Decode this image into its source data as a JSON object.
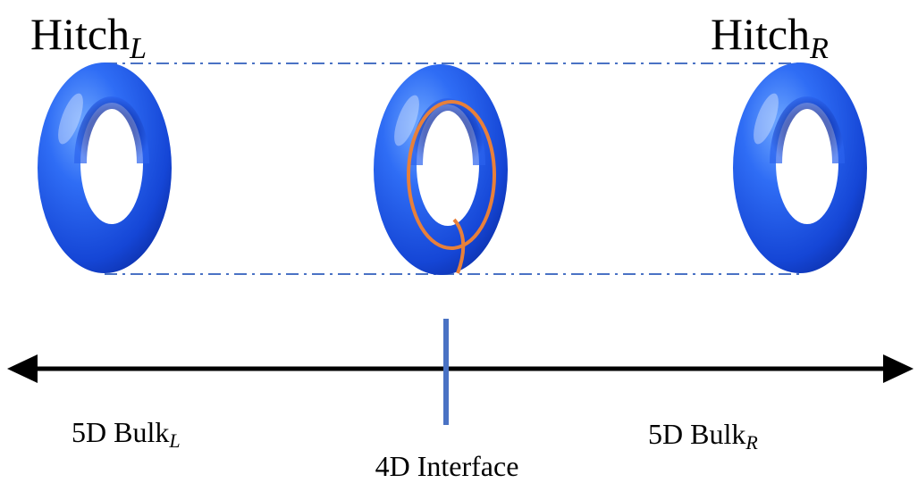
{
  "labels": {
    "hitch_left": {
      "text": "Hitch",
      "sub": "L"
    },
    "hitch_right": {
      "text": "Hitch",
      "sub": "R"
    },
    "bulk_left": {
      "text": "5D Bulk",
      "sub": "L"
    },
    "bulk_right": {
      "text": "5D Bulk",
      "sub": "R"
    },
    "interface": "4D Interface"
  }
}
